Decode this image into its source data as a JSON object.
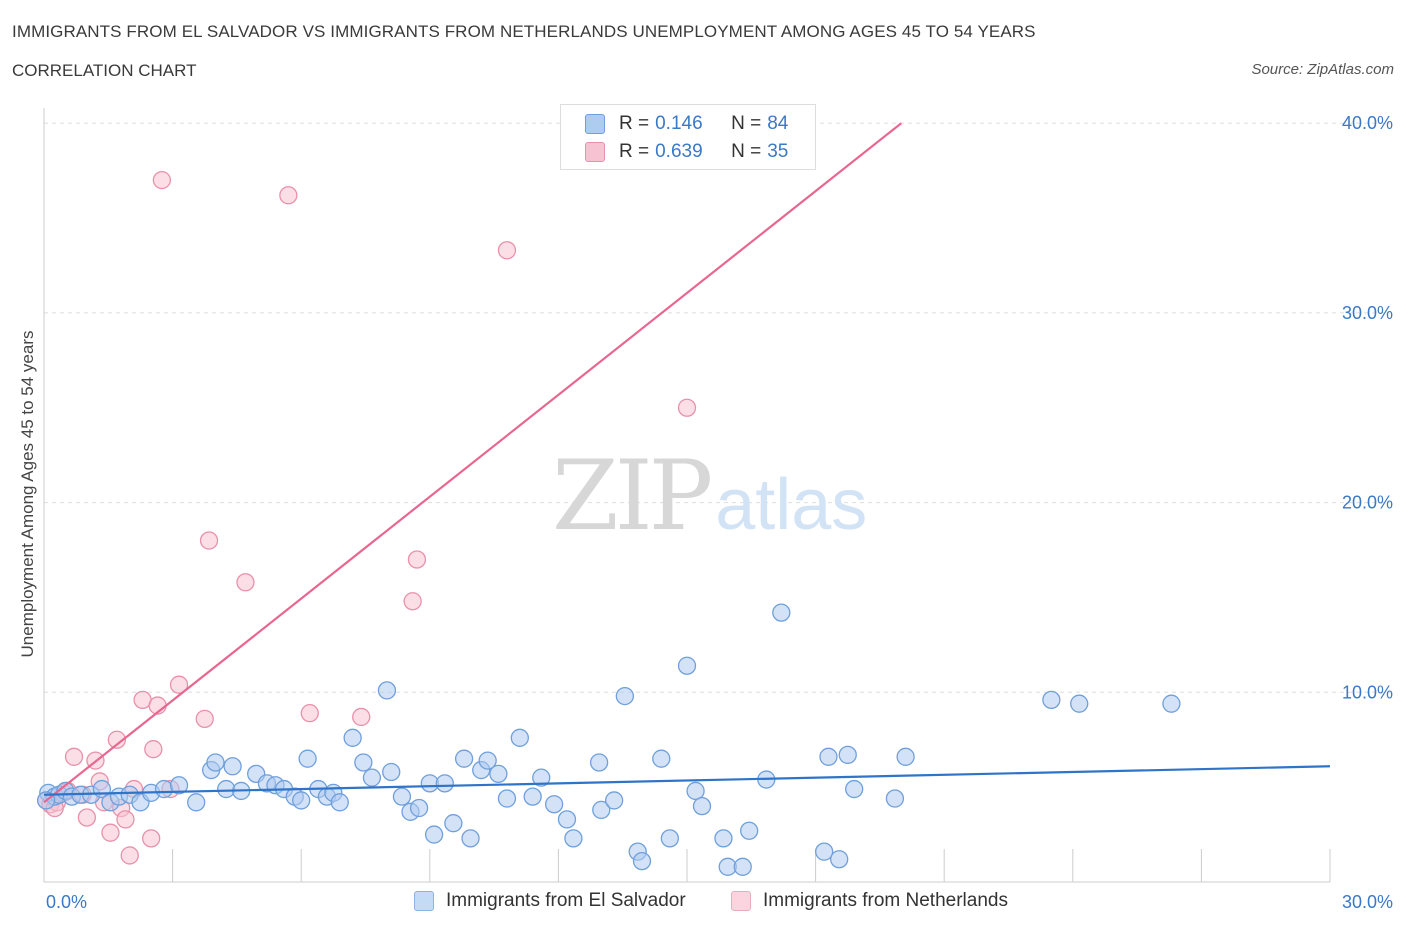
{
  "header": {
    "title": "IMMIGRANTS FROM EL SALVADOR VS IMMIGRANTS FROM NETHERLANDS UNEMPLOYMENT AMONG AGES 45 TO 54 YEARS",
    "subtitle": "CORRELATION CHART",
    "source": "Source: ZipAtlas.com"
  },
  "watermark": {
    "zip": "ZIP",
    "atlas": "atlas"
  },
  "legend": {
    "rows": [
      {
        "r_label": "R =",
        "r_value": "0.146",
        "n_label": "N =",
        "n_value": "84"
      },
      {
        "r_label": "R =",
        "r_value": "0.639",
        "n_label": "N =",
        "n_value": "35"
      }
    ]
  },
  "bottom_legend": {
    "series1": "Immigrants from El Salvador",
    "series2": "Immigrants from Netherlands"
  },
  "colors": {
    "blue_fill": "#aecbf0",
    "blue_stroke": "#6fa0dc",
    "blue_line": "#2f74c8",
    "pink_fill": "#f7c2d1",
    "pink_stroke": "#e891aa",
    "pink_line": "#e8668f",
    "axis_label": "#3a78c8",
    "grid": "#dddddd"
  },
  "chart_data": {
    "type": "scatter",
    "title": "IMMIGRANTS FROM EL SALVADOR VS IMMIGRANTS FROM NETHERLANDS UNEMPLOYMENT AMONG AGES 45 TO 54 YEARS",
    "xlabel": "",
    "ylabel": "Unemployment Among Ages 45 to 54 years",
    "xlim": [
      0,
      30
    ],
    "ylim": [
      0,
      40.8
    ],
    "x_tick_labels": [
      {
        "value": 0,
        "label": "0.0%"
      },
      {
        "value": 30,
        "label": "30.0%"
      }
    ],
    "y_tick_labels": [
      {
        "value": 10,
        "label": "10.0%"
      },
      {
        "value": 20,
        "label": "20.0%"
      },
      {
        "value": 30,
        "label": "30.0%"
      },
      {
        "value": 40,
        "label": "40.0%"
      }
    ],
    "grid": true,
    "legend_position": "top-center",
    "series": [
      {
        "name": "Immigrants from El Salvador",
        "color": "#aecbf0",
        "trend": {
          "x1": 0,
          "y1": 4.6,
          "x2": 30,
          "y2": 6.1
        },
        "points": [
          [
            0.1,
            4.7
          ],
          [
            0.25,
            4.5
          ],
          [
            0.35,
            4.6
          ],
          [
            0.5,
            4.8
          ],
          [
            0.65,
            4.5
          ],
          [
            0.85,
            4.6
          ],
          [
            1.1,
            4.6
          ],
          [
            1.35,
            4.9
          ],
          [
            1.55,
            4.2
          ],
          [
            1.75,
            4.5
          ],
          [
            2.0,
            4.6
          ],
          [
            2.25,
            4.2
          ],
          [
            2.5,
            4.7
          ],
          [
            2.8,
            4.9
          ],
          [
            3.15,
            5.1
          ],
          [
            3.55,
            4.2
          ],
          [
            3.9,
            5.9
          ],
          [
            4.0,
            6.3
          ],
          [
            4.25,
            4.9
          ],
          [
            4.4,
            6.1
          ],
          [
            4.6,
            4.8
          ],
          [
            4.95,
            5.7
          ],
          [
            5.2,
            5.2
          ],
          [
            5.4,
            5.1
          ],
          [
            5.6,
            4.9
          ],
          [
            5.85,
            4.5
          ],
          [
            6.0,
            4.3
          ],
          [
            6.15,
            6.5
          ],
          [
            6.4,
            4.9
          ],
          [
            6.6,
            4.5
          ],
          [
            6.75,
            4.7
          ],
          [
            6.9,
            4.2
          ],
          [
            7.2,
            7.6
          ],
          [
            7.45,
            6.3
          ],
          [
            7.65,
            5.5
          ],
          [
            8.0,
            10.1
          ],
          [
            8.1,
            5.8
          ],
          [
            8.35,
            4.5
          ],
          [
            8.55,
            3.7
          ],
          [
            8.75,
            3.9
          ],
          [
            9.0,
            5.2
          ],
          [
            9.1,
            2.5
          ],
          [
            9.35,
            5.2
          ],
          [
            9.55,
            3.1
          ],
          [
            9.8,
            6.5
          ],
          [
            9.95,
            2.3
          ],
          [
            10.2,
            5.9
          ],
          [
            10.35,
            6.4
          ],
          [
            10.6,
            5.7
          ],
          [
            10.8,
            4.4
          ],
          [
            11.1,
            7.6
          ],
          [
            11.4,
            4.5
          ],
          [
            11.6,
            5.5
          ],
          [
            11.9,
            4.1
          ],
          [
            12.2,
            3.3
          ],
          [
            12.35,
            2.3
          ],
          [
            12.95,
            6.3
          ],
          [
            13.0,
            3.8
          ],
          [
            13.3,
            4.3
          ],
          [
            13.55,
            9.8
          ],
          [
            13.85,
            1.6
          ],
          [
            13.95,
            1.1
          ],
          [
            14.4,
            6.5
          ],
          [
            14.6,
            2.3
          ],
          [
            15.0,
            11.4
          ],
          [
            15.2,
            4.8
          ],
          [
            15.35,
            4.0
          ],
          [
            15.85,
            2.3
          ],
          [
            15.95,
            0.8
          ],
          [
            16.3,
            0.8
          ],
          [
            16.45,
            2.7
          ],
          [
            16.85,
            5.4
          ],
          [
            17.2,
            14.2
          ],
          [
            18.2,
            1.6
          ],
          [
            18.3,
            6.6
          ],
          [
            18.55,
            1.2
          ],
          [
            18.75,
            6.7
          ],
          [
            18.9,
            4.9
          ],
          [
            19.85,
            4.4
          ],
          [
            20.1,
            6.6
          ],
          [
            23.5,
            9.6
          ],
          [
            24.15,
            9.4
          ],
          [
            26.3,
            9.4
          ],
          [
            0.05,
            4.3
          ]
        ]
      },
      {
        "name": "Immigrants from Netherlands",
        "color": "#f7c2d1",
        "trend": {
          "x1": 0,
          "y1": 4.2,
          "x2": 20.0,
          "y2": 40.0
        },
        "points": [
          [
            0.05,
            4.3
          ],
          [
            0.15,
            4.1
          ],
          [
            0.3,
            4.2
          ],
          [
            0.45,
            4.7
          ],
          [
            0.55,
            4.8
          ],
          [
            0.7,
            6.6
          ],
          [
            0.9,
            4.6
          ],
          [
            1.0,
            3.4
          ],
          [
            1.2,
            6.4
          ],
          [
            1.3,
            5.3
          ],
          [
            1.4,
            4.2
          ],
          [
            1.55,
            2.6
          ],
          [
            1.7,
            7.5
          ],
          [
            1.8,
            3.9
          ],
          [
            1.9,
            3.3
          ],
          [
            2.0,
            1.4
          ],
          [
            2.1,
            4.9
          ],
          [
            2.3,
            9.6
          ],
          [
            2.5,
            2.3
          ],
          [
            2.55,
            7.0
          ],
          [
            2.65,
            9.3
          ],
          [
            2.75,
            37.0
          ],
          [
            2.95,
            4.9
          ],
          [
            3.15,
            10.4
          ],
          [
            3.75,
            8.6
          ],
          [
            3.85,
            18.0
          ],
          [
            4.7,
            15.8
          ],
          [
            5.7,
            36.2
          ],
          [
            6.2,
            8.9
          ],
          [
            7.4,
            8.7
          ],
          [
            8.6,
            14.8
          ],
          [
            8.7,
            17.0
          ],
          [
            10.8,
            33.3
          ],
          [
            15.0,
            25.0
          ],
          [
            0.25,
            3.9
          ]
        ]
      }
    ]
  }
}
